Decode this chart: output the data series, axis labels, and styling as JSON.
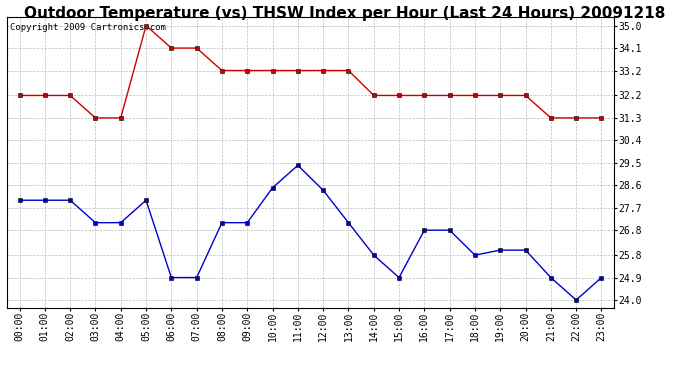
{
  "title": "Outdoor Temperature (vs) THSW Index per Hour (Last 24 Hours) 20091218",
  "copyright_text": "Copyright 2009 Cartronics.com",
  "hours": [
    "00:00",
    "01:00",
    "02:00",
    "03:00",
    "04:00",
    "05:00",
    "06:00",
    "07:00",
    "08:00",
    "09:00",
    "10:00",
    "11:00",
    "12:00",
    "13:00",
    "14:00",
    "15:00",
    "16:00",
    "17:00",
    "18:00",
    "19:00",
    "20:00",
    "21:00",
    "22:00",
    "23:00"
  ],
  "red_data": [
    32.2,
    32.2,
    32.2,
    31.3,
    31.3,
    35.0,
    34.1,
    34.1,
    33.2,
    33.2,
    33.2,
    33.2,
    33.2,
    33.2,
    32.2,
    32.2,
    32.2,
    32.2,
    32.2,
    32.2,
    32.2,
    31.3,
    31.3,
    31.3
  ],
  "blue_data": [
    28.0,
    28.0,
    28.0,
    27.1,
    27.1,
    28.0,
    24.9,
    24.9,
    27.1,
    27.1,
    28.5,
    29.4,
    28.4,
    27.1,
    25.8,
    24.9,
    26.8,
    26.8,
    25.8,
    26.0,
    26.0,
    24.9,
    24.0,
    24.9
  ],
  "red_color": "#cc0000",
  "blue_color": "#0000cc",
  "bg_color": "#ffffff",
  "grid_color": "#bbbbbb",
  "yticks": [
    24.0,
    24.9,
    25.8,
    26.8,
    27.7,
    28.6,
    29.5,
    30.4,
    31.3,
    32.2,
    33.2,
    34.1,
    35.0
  ],
  "ymin": 23.7,
  "ymax": 35.35,
  "title_fontsize": 11,
  "copyright_fontsize": 6.5,
  "tick_fontsize": 7
}
